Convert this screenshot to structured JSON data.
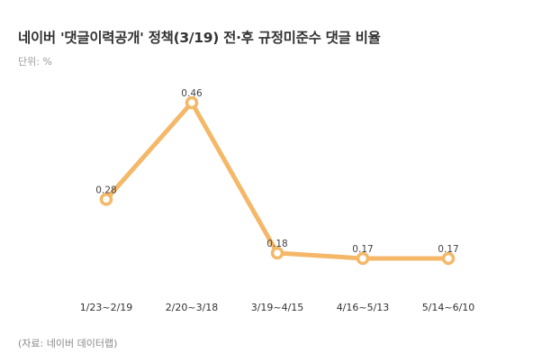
{
  "title": "네이버 '댓글이력공개' 정책(3/19) 전·후 규정미준수 댓글 비율",
  "unit_label": "단위: %",
  "source": "(자료: 네이버 데이터랩)",
  "colors": {
    "line": "#f4b868",
    "marker_fill": "#ffffff",
    "text": "#333333"
  },
  "chart_data": {
    "type": "line",
    "title": "네이버 '댓글이력공개' 정책(3/19) 전·후 규정미준수 댓글 비율",
    "ylabel": "단위: %",
    "xlabel": "",
    "categories": [
      "1/23~2/19",
      "2/20~3/18",
      "3/19~4/15",
      "4/16~5/13",
      "5/14~6/10"
    ],
    "series": [
      {
        "values": [
          0.28,
          0.46,
          0.18,
          0.17,
          0.17
        ],
        "labels": [
          "0.28",
          "0.46",
          "0.18",
          "0.17",
          "0.17"
        ]
      }
    ],
    "ylim": [
      0.1,
      0.5
    ],
    "grid": false,
    "legend": "none"
  }
}
